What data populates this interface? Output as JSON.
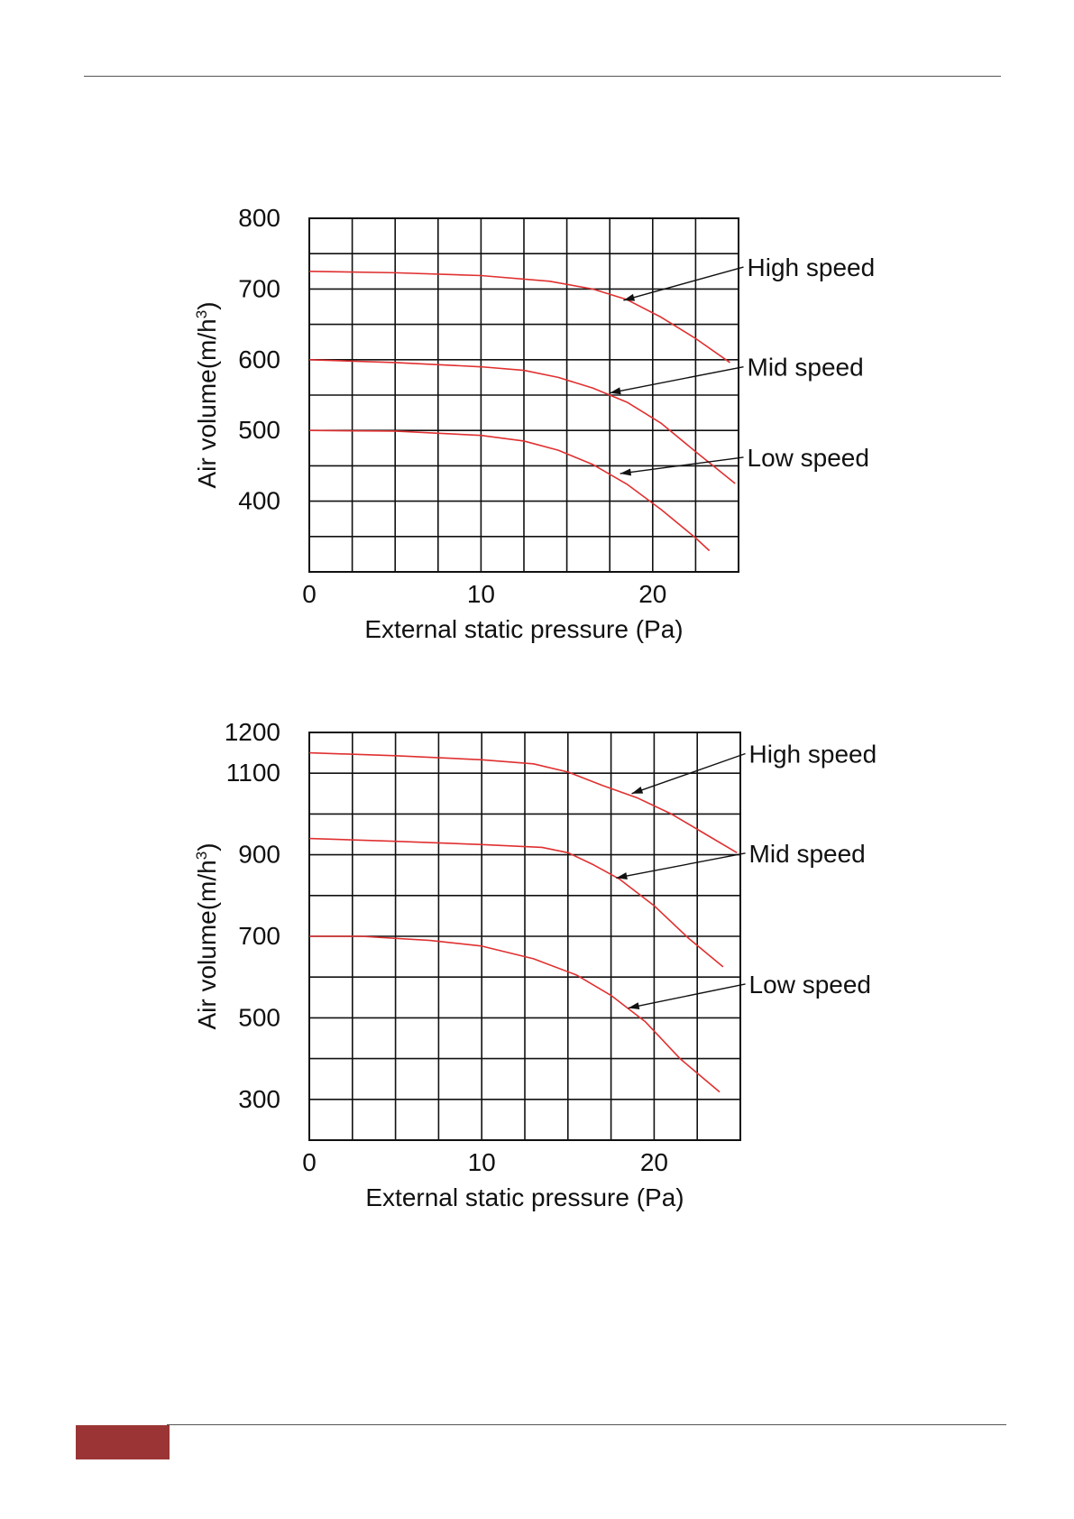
{
  "page": {
    "footer_color": "#9b3535"
  },
  "chart_data": [
    {
      "type": "line",
      "xlabel": "External static pressure (Pa)",
      "ylabel": "Air volume(m/h",
      "ylabel_sup": "3",
      "ylabel_close": ")",
      "xlim": [
        0,
        25
      ],
      "ylim": [
        300,
        800
      ],
      "x_ticks": [
        0,
        10,
        20
      ],
      "y_ticks": [
        400,
        500,
        600,
        700,
        800
      ],
      "x_grid": [
        0,
        2.5,
        5,
        7.5,
        10,
        12.5,
        15,
        17.5,
        20,
        22.5,
        25
      ],
      "y_grid": [
        300,
        350,
        400,
        450,
        500,
        550,
        600,
        650,
        700,
        750,
        800
      ],
      "grid": true,
      "line_color": "#e03030",
      "series": [
        {
          "name": "High speed",
          "x": [
            0,
            5,
            10,
            14,
            16.5,
            18.5,
            20.5,
            22.5,
            24.5
          ],
          "y": [
            725,
            723,
            719,
            711,
            700,
            685,
            660,
            630,
            596
          ]
        },
        {
          "name": "Mid speed",
          "x": [
            0,
            5,
            10,
            12.5,
            14.5,
            16.5,
            18.5,
            20.5,
            22.5,
            24.8
          ],
          "y": [
            600,
            596,
            590,
            585,
            575,
            560,
            540,
            510,
            470,
            425
          ]
        },
        {
          "name": "Low speed",
          "x": [
            0,
            5,
            10,
            12.5,
            14.5,
            16.5,
            18.5,
            20.5,
            22.5,
            23.3
          ],
          "y": [
            500,
            499,
            493,
            485,
            472,
            452,
            424,
            388,
            348,
            330
          ]
        }
      ],
      "annotations": [
        {
          "text": "High speed",
          "label_x": 25.5,
          "label_y": 731,
          "arrow_x": 18.3,
          "arrow_y": 684
        },
        {
          "text": "Mid speed",
          "label_x": 25.5,
          "label_y": 590,
          "arrow_x": 17.5,
          "arrow_y": 553
        },
        {
          "text": "Low speed",
          "label_x": 25.5,
          "label_y": 462,
          "arrow_x": 18.1,
          "arrow_y": 439
        }
      ]
    },
    {
      "type": "line",
      "xlabel": "External static pressure (Pa)",
      "ylabel": "Air volume(m/h",
      "ylabel_sup": "3",
      "ylabel_close": ")",
      "xlim": [
        0,
        25
      ],
      "ylim": [
        200,
        1200
      ],
      "x_ticks": [
        0,
        10,
        20
      ],
      "y_ticks": [
        300,
        500,
        700,
        900,
        1100,
        1200
      ],
      "x_grid": [
        0,
        2.5,
        5,
        7.5,
        10,
        12.5,
        15,
        17.5,
        20,
        22.5,
        25
      ],
      "y_grid": [
        200,
        300,
        400,
        500,
        600,
        700,
        800,
        900,
        1000,
        1100,
        1200
      ],
      "grid": true,
      "line_color": "#e03030",
      "series": [
        {
          "name": "High speed",
          "x": [
            0,
            5,
            10,
            13,
            15,
            17,
            19,
            21,
            23,
            24.8
          ],
          "y": [
            1150,
            1143,
            1133,
            1123,
            1103,
            1070,
            1040,
            1000,
            950,
            905
          ]
        },
        {
          "name": "Mid speed",
          "x": [
            0,
            5,
            10,
            13.5,
            15,
            16.5,
            18,
            20,
            22,
            24
          ],
          "y": [
            940,
            933,
            925,
            918,
            905,
            875,
            840,
            775,
            695,
            625
          ]
        },
        {
          "name": "Low speed",
          "x": [
            0,
            3,
            7,
            10,
            13,
            15.5,
            17.5,
            19.5,
            21.5,
            23.8
          ],
          "y": [
            700,
            700,
            690,
            676,
            645,
            605,
            555,
            490,
            400,
            318
          ]
        }
      ],
      "annotations": [
        {
          "text": "High speed",
          "label_x": 25.5,
          "label_y": 1148,
          "arrow_x": 18.7,
          "arrow_y": 1050
        },
        {
          "text": "Mid speed",
          "label_x": 25.5,
          "label_y": 904,
          "arrow_x": 17.8,
          "arrow_y": 843
        },
        {
          "text": "Low speed",
          "label_x": 25.5,
          "label_y": 583,
          "arrow_x": 18.5,
          "arrow_y": 524
        }
      ]
    }
  ]
}
